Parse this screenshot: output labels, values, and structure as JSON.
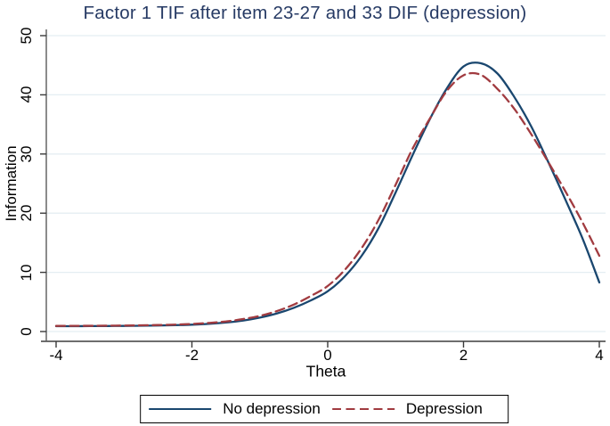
{
  "chart": {
    "title": "Factor 1 TIF after item 23-27 and 33 DIF (depression)",
    "title_color": "#263a64",
    "xlabel": "Theta",
    "ylabel": "Information",
    "grid_color": "#e4eef2",
    "axis_color": "#5a5a5a",
    "tick_color": "#3a3a3a",
    "background": "#ffffff"
  },
  "chart_data": {
    "type": "line",
    "title": "Factor 1 TIF after item 23-27 and 33 DIF (depression)",
    "xlabel": "Theta",
    "ylabel": "Information",
    "xlim": [
      -4,
      4
    ],
    "ylim": [
      0,
      50
    ],
    "x_ticks": [
      -4,
      -2,
      0,
      2,
      4
    ],
    "y_ticks": [
      0,
      10,
      20,
      30,
      40,
      50
    ],
    "grid": true,
    "legend_position": "bottom",
    "x": [
      -4,
      -3.75,
      -3.5,
      -3.25,
      -3,
      -2.75,
      -2.5,
      -2.25,
      -2,
      -1.75,
      -1.5,
      -1.25,
      -1,
      -0.75,
      -0.5,
      -0.25,
      0,
      0.25,
      0.5,
      0.75,
      1,
      1.25,
      1.5,
      1.75,
      2,
      2.25,
      2.5,
      2.75,
      3,
      3.25,
      3.5,
      3.75,
      4
    ],
    "series": [
      {
        "name": "No depression",
        "style": "solid",
        "color": "#1a476f",
        "values": [
          0.9,
          0.9,
          0.92,
          0.93,
          0.95,
          0.98,
          1.02,
          1.08,
          1.16,
          1.3,
          1.52,
          1.85,
          2.35,
          3.05,
          4.0,
          5.25,
          6.8,
          9.3,
          12.8,
          17.5,
          23.5,
          29.8,
          35.8,
          41.0,
          44.8,
          45.35,
          43.6,
          39.6,
          34.6,
          28.6,
          22.3,
          15.8,
          8.3
        ]
      },
      {
        "name": "Depression",
        "style": "dashed",
        "color": "#a13b40",
        "values": [
          0.95,
          0.96,
          0.97,
          0.99,
          1.01,
          1.05,
          1.1,
          1.17,
          1.28,
          1.45,
          1.7,
          2.1,
          2.65,
          3.45,
          4.55,
          6.0,
          7.7,
          10.4,
          14.1,
          18.9,
          24.8,
          30.9,
          35.9,
          40.6,
          43.3,
          43.4,
          41.0,
          37.6,
          33.3,
          28.6,
          23.7,
          18.5,
          12.8
        ]
      }
    ]
  }
}
